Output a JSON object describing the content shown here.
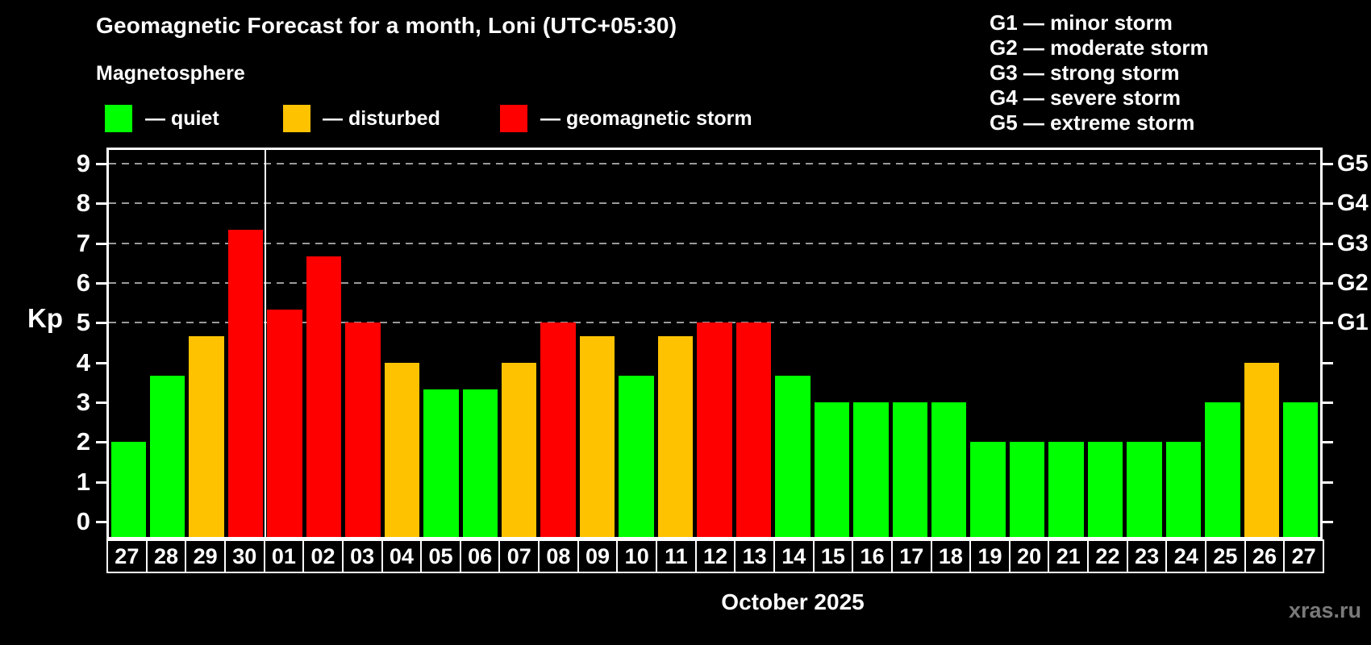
{
  "header": {
    "title": "Geomagnetic Forecast for a month, Loni (UTC+05:30)",
    "subtitle": "Magnetosphere"
  },
  "legend": {
    "items": [
      {
        "key": "quiet",
        "label": "— quiet",
        "color": "#00ff00"
      },
      {
        "key": "disturbed",
        "label": "— disturbed",
        "color": "#ffc200"
      },
      {
        "key": "storm",
        "label": "— geomagnetic storm",
        "color": "#ff0000"
      }
    ]
  },
  "storm_scale_legend": {
    "items": [
      "G1 — minor storm",
      "G2 — moderate storm",
      "G3 — strong storm",
      "G4 — severe storm",
      "G5 — extreme storm"
    ]
  },
  "watermark": "xras.ru",
  "chart_data": {
    "type": "bar",
    "title": "Geomagnetic Forecast for a month, Loni (UTC+05:30)",
    "subtitle": "Magnetosphere",
    "ylabel": "Kp",
    "xlabel": "October 2025",
    "categories": [
      "27",
      "28",
      "29",
      "30",
      "01",
      "02",
      "03",
      "04",
      "05",
      "06",
      "07",
      "08",
      "09",
      "10",
      "11",
      "12",
      "13",
      "14",
      "15",
      "16",
      "17",
      "18",
      "19",
      "20",
      "21",
      "22",
      "23",
      "24",
      "25",
      "26",
      "27"
    ],
    "values": [
      2,
      3.67,
      4.67,
      7.33,
      5.33,
      6.67,
      5,
      4,
      3.33,
      3.33,
      4,
      5,
      4.67,
      3.67,
      4.67,
      5,
      5,
      3.67,
      3,
      3,
      3,
      3,
      2,
      2,
      2,
      2,
      2,
      2,
      3,
      4,
      3
    ],
    "statuses": [
      "quiet",
      "quiet",
      "disturbed",
      "storm",
      "storm",
      "storm",
      "storm",
      "disturbed",
      "quiet",
      "quiet",
      "disturbed",
      "storm",
      "disturbed",
      "quiet",
      "disturbed",
      "storm",
      "storm",
      "quiet",
      "quiet",
      "quiet",
      "quiet",
      "quiet",
      "quiet",
      "quiet",
      "quiet",
      "quiet",
      "quiet",
      "quiet",
      "quiet",
      "disturbed",
      "quiet"
    ],
    "status_colors": {
      "quiet": "#00ff00",
      "disturbed": "#ffc200",
      "storm": "#ff0000"
    },
    "yticks": [
      0,
      1,
      2,
      3,
      4,
      5,
      6,
      7,
      8,
      9
    ],
    "ylim": [
      -0.45,
      9.4
    ],
    "gridlines_at": [
      5,
      6,
      7,
      8,
      9
    ],
    "grid_style": "dashed gray horizontal",
    "right_axis_labels": [
      {
        "value": 5,
        "label": "G1"
      },
      {
        "value": 6,
        "label": "G2"
      },
      {
        "value": 7,
        "label": "G3"
      },
      {
        "value": 8,
        "label": "G4"
      },
      {
        "value": 9,
        "label": "G5"
      }
    ],
    "month_divider_after_index": 3,
    "legend_position": "top",
    "bar_colors_hex": {
      "quiet_green": "#00ff00",
      "disturbed_orange": "#ffc200",
      "storm_red": "#ff0000"
    }
  }
}
